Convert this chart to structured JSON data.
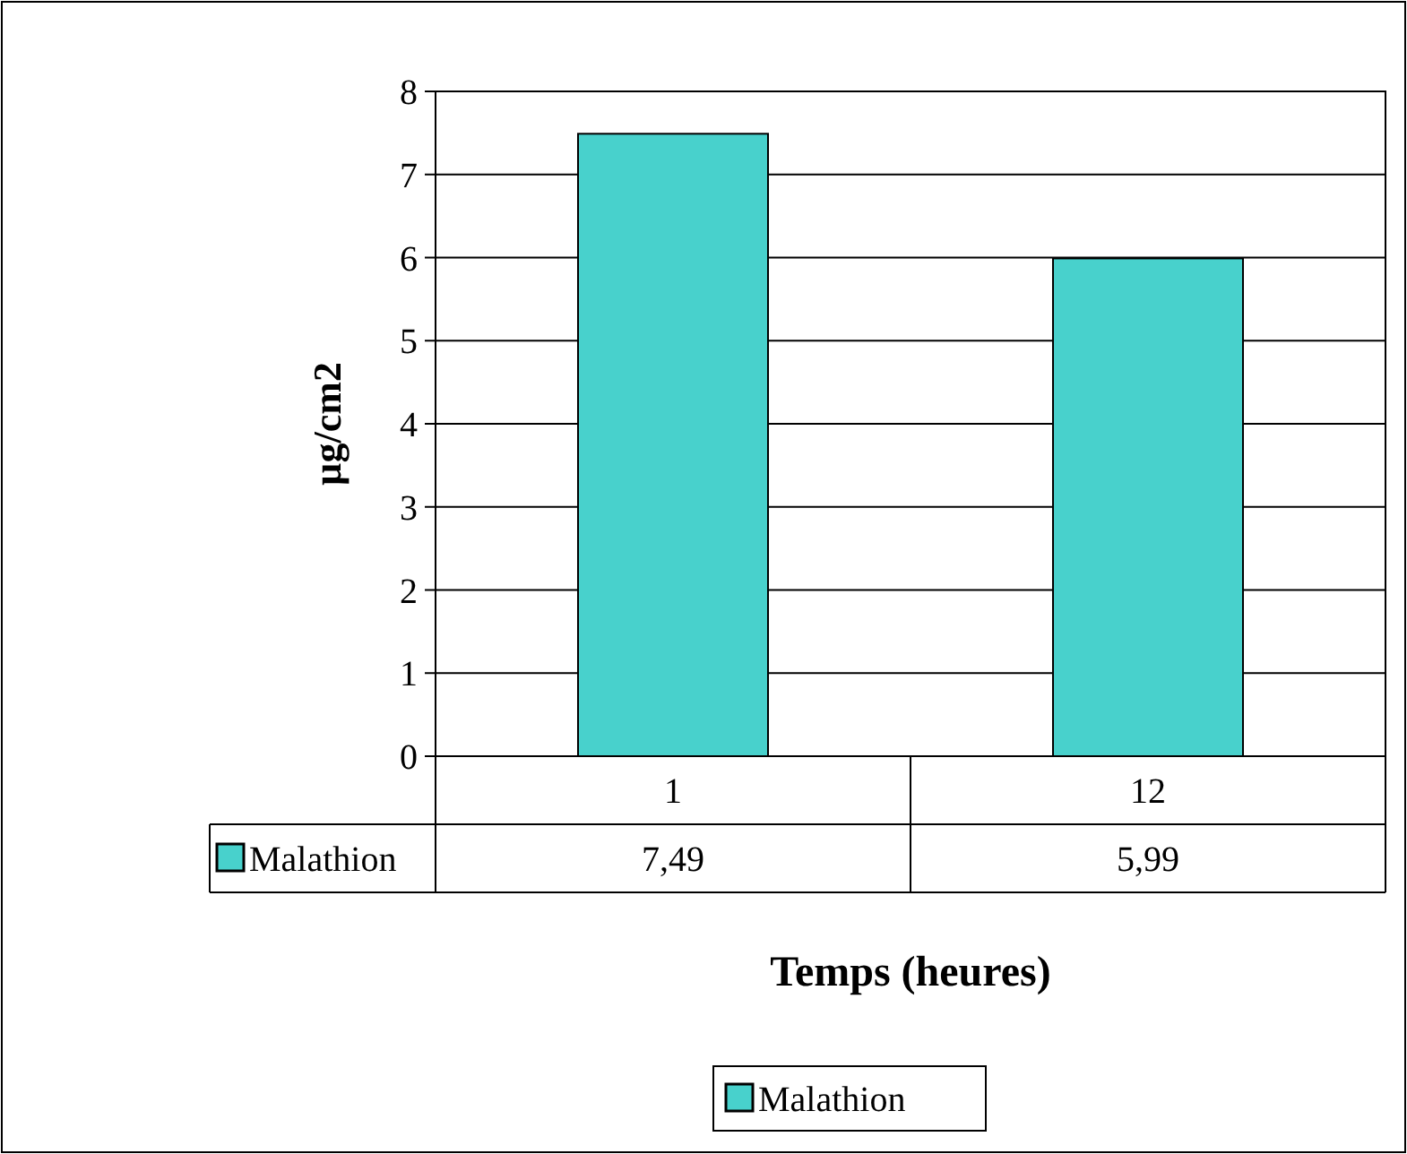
{
  "chart_data": {
    "type": "bar",
    "xlabel": "Temps (heures)",
    "ylabel": "µg/cm2",
    "categories": [
      "1",
      "12"
    ],
    "series": [
      {
        "name": "Malathion",
        "color": "#48d1cc",
        "values": [
          7.49,
          5.99
        ],
        "value_labels": [
          "7,49",
          "5,99"
        ]
      }
    ],
    "ylim": [
      0,
      8
    ],
    "yticks": [
      0,
      1,
      2,
      3,
      4,
      5,
      6,
      7,
      8
    ],
    "grid": "y",
    "legend": "bottom"
  }
}
